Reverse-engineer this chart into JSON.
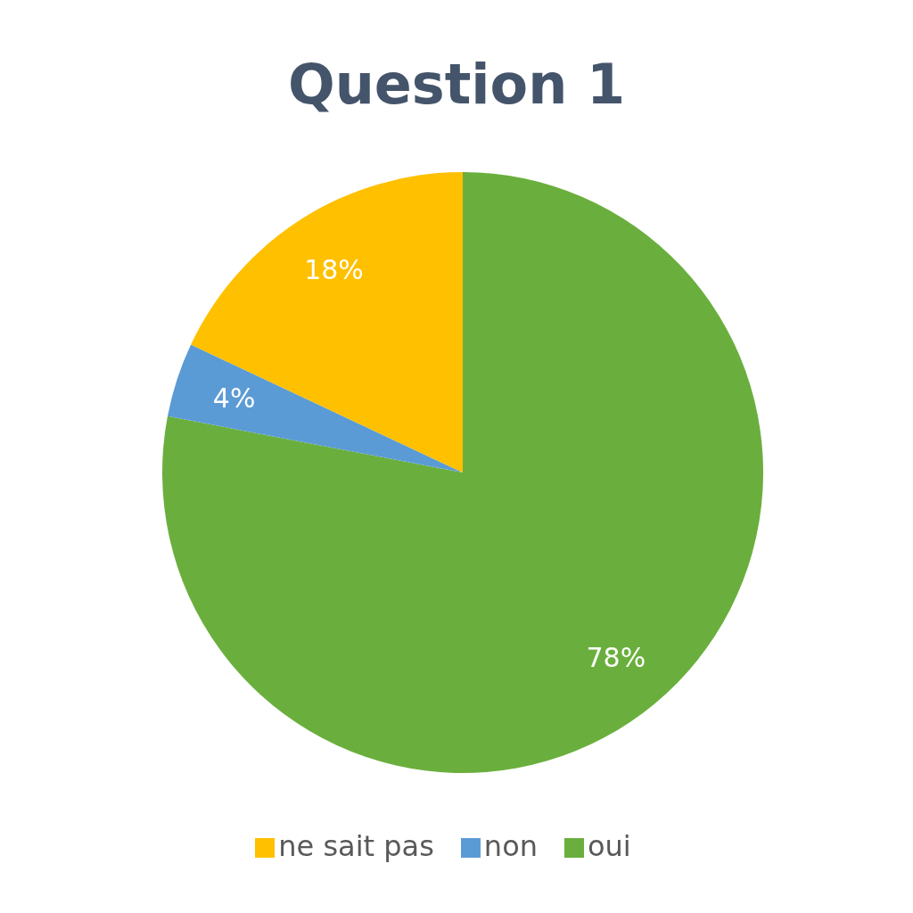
{
  "chart_data": {
    "type": "pie",
    "title": "Question 1",
    "categories": [
      "oui",
      "non",
      "ne sait pas"
    ],
    "values": [
      78,
      4,
      18
    ],
    "colors": [
      "#6aaf3d",
      "#5b9bd5",
      "#ffc000"
    ],
    "value_labels": [
      "78%",
      "4%",
      "18%"
    ],
    "legend": "bottom"
  }
}
